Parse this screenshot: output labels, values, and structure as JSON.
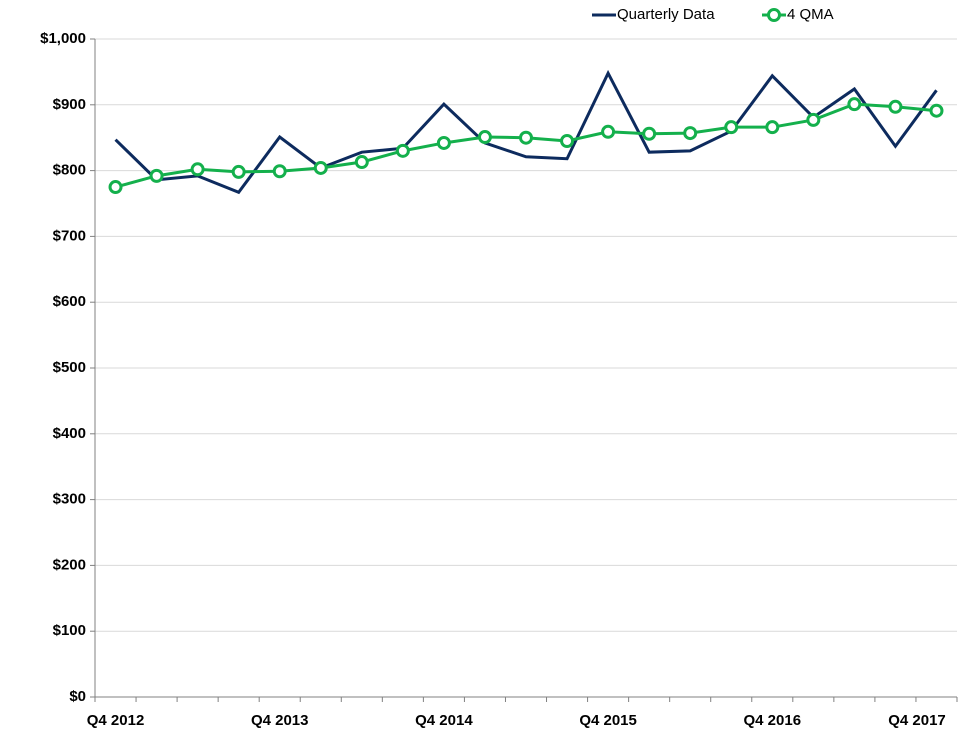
{
  "chart_data": {
    "type": "line",
    "categories": [
      "Q4 2012",
      null,
      null,
      null,
      "Q4 2013",
      null,
      null,
      null,
      "Q4 2014",
      null,
      null,
      null,
      "Q4 2015",
      null,
      null,
      null,
      "Q4 2016",
      null,
      null,
      null,
      "Q4 2017"
    ],
    "series": [
      {
        "name": "Quarterly Data",
        "color": "#0d2b5e",
        "marker": false,
        "values": [
          847,
          786,
          792,
          767,
          851,
          804,
          828,
          834,
          901,
          842,
          821,
          818,
          948,
          828,
          830,
          860,
          944,
          881,
          924,
          837,
          922
        ]
      },
      {
        "name": "4 QMA",
        "color": "#14b04c",
        "marker": true,
        "values": [
          775,
          792,
          802,
          798,
          799,
          804,
          813,
          830,
          842,
          851,
          850,
          845,
          859,
          856,
          857,
          866,
          866,
          877,
          901,
          897,
          891
        ]
      }
    ],
    "ylim": [
      0,
      1000
    ],
    "yticks": [
      {
        "value": 0,
        "label": "$0"
      },
      {
        "value": 100,
        "label": "$100"
      },
      {
        "value": 200,
        "label": "$200"
      },
      {
        "value": 300,
        "label": "$300"
      },
      {
        "value": 400,
        "label": "$400"
      },
      {
        "value": 500,
        "label": "$500"
      },
      {
        "value": 600,
        "label": "$600"
      },
      {
        "value": 700,
        "label": "$700"
      },
      {
        "value": 800,
        "label": "$800"
      },
      {
        "value": 900,
        "label": "$900"
      },
      {
        "value": 1000,
        "label": "$1,000"
      }
    ],
    "grid": true,
    "legend": "top-right"
  }
}
